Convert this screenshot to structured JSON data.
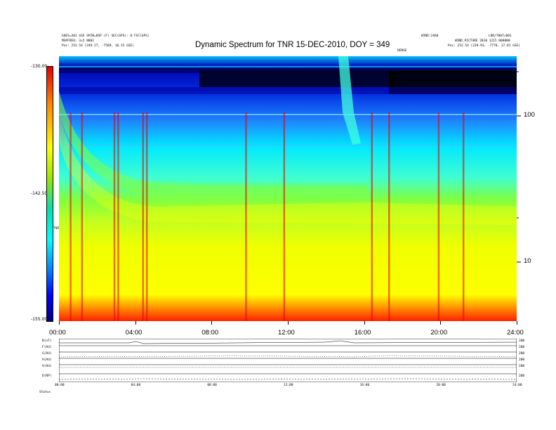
{
  "header": {
    "left_line1": "GOES=301 GSE SPIN=0SP (F) SEC(GPS): 0 FSC(GPS)",
    "left_line2": "MSPFREQ: 3=5 0001",
    "left_line3": "Pos: 252.54 (249.27, -7589, 16.15 GSE)",
    "right_line1": "WIND:2460",
    "right_line2": "WIND_PICTURE 2010 1215 000000",
    "right_line3": "Pos: 252.54 (239.93, -7778, 17.81 GSE)",
    "right_corner": "LDR/7007=001",
    "center_mark": "DENSE"
  },
  "chart_data": {
    "type": "heatmap",
    "title": "Dynamic Spectrum for TNR 15-DEC-2010, DOY = 349",
    "x_ticks": [
      "00:00",
      "04:00",
      "08:00",
      "12:00",
      "16:00",
      "20:00",
      "24:00"
    ],
    "x_range_hours": [
      0,
      24
    ],
    "y_scale": "log",
    "y_ticks": [
      {
        "value": 100,
        "label": "100"
      },
      {
        "value": 10,
        "label": "10"
      }
    ],
    "y_range": [
      4,
      250
    ],
    "colorbar_ticks": [
      "-130.00",
      "-142.50",
      "-155.00"
    ],
    "colorbar_range": [
      -155.0,
      -130.0
    ],
    "colorbar_label": "TNR",
    "colors": [
      "#e60000",
      "#ff7f00",
      "#ffff00",
      "#00e000",
      "#00ffff",
      "#0060ff",
      "#0000b0",
      "#000000"
    ],
    "bursts_hours": [
      0.6,
      1.2,
      2.9,
      3.1,
      4.4,
      4.6,
      9.8,
      11.8,
      16.4,
      17.3,
      19.9,
      21.2
    ]
  },
  "panels": {
    "rows": [
      {
        "left": "B(nT)",
        "right": "200"
      },
      {
        "left": "F(AU)",
        "right": "200"
      },
      {
        "left": "G(AU)",
        "right": "200"
      },
      {
        "left": "H(AU)",
        "right": "200"
      },
      {
        "left": "V(AU)",
        "right": "200"
      },
      {
        "left": "D(RP)",
        "right": "200"
      }
    ],
    "x_ticks": [
      "00:00",
      "04:00",
      "08:00",
      "12:00",
      "16:00",
      "20:00",
      "24:00"
    ],
    "footer_label": "Status"
  }
}
